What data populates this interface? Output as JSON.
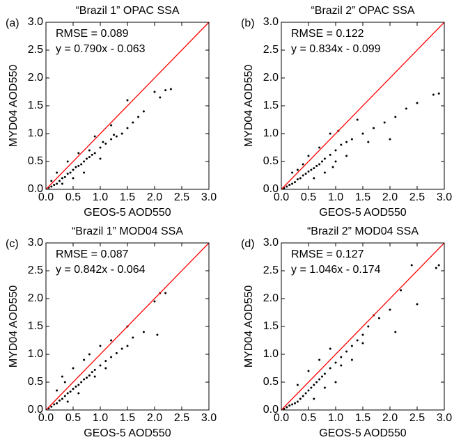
{
  "chart_data": [
    {
      "type": "scatter",
      "title": "“Brazil 1”  OPAC SSA",
      "panel_label": "(a)",
      "xlabel": "GEOS-5 AOD550",
      "ylabel": "MYD04 AOD550",
      "annotations": [
        "RMSE = 0.089",
        "y = 0.790x - 0.063"
      ],
      "color": "#000000",
      "line_color": "#ff0000",
      "xlim": [
        0,
        3
      ],
      "ylim": [
        0,
        3
      ],
      "xticks": [
        {
          "value": 0,
          "label": "0.0"
        },
        0.5,
        {
          "value": 1,
          "label": "1.0"
        },
        1.5,
        {
          "value": 2,
          "label": "2.0"
        },
        2.5,
        {
          "value": 3,
          "label": "3.0"
        }
      ],
      "yticks": [
        {
          "value": 0,
          "label": "0.0"
        },
        0.5,
        {
          "value": 1,
          "label": "1.0"
        },
        1.5,
        {
          "value": 2,
          "label": "2.0"
        },
        2.5,
        {
          "value": 3,
          "label": "3.0"
        }
      ],
      "x": [
        0.05,
        0.1,
        0.15,
        0.2,
        0.25,
        0.3,
        0.35,
        0.4,
        0.45,
        0.5,
        0.55,
        0.6,
        0.65,
        0.7,
        0.75,
        0.8,
        0.85,
        0.9,
        1.0,
        1.1,
        1.2,
        1.3,
        1.4,
        1.5,
        1.6,
        1.7,
        1.8,
        2.0,
        2.1,
        2.2,
        2.3,
        0.3,
        0.5,
        0.2,
        0.4,
        0.7,
        1.0,
        1.5,
        0.9,
        1.2,
        0.1,
        0.6,
        0.8,
        1.05,
        1.25
      ],
      "y": [
        0.03,
        0.05,
        0.08,
        0.1,
        0.15,
        0.2,
        0.22,
        0.28,
        0.3,
        0.35,
        0.4,
        0.42,
        0.45,
        0.5,
        0.55,
        0.58,
        0.62,
        0.65,
        0.75,
        0.82,
        0.9,
        0.95,
        1.0,
        1.1,
        1.2,
        1.3,
        1.4,
        1.75,
        1.65,
        1.78,
        1.8,
        0.1,
        0.2,
        0.3,
        0.5,
        0.3,
        0.55,
        1.6,
        0.95,
        1.15,
        0.15,
        0.65,
        0.7,
        0.85,
        0.98
      ]
    },
    {
      "type": "scatter",
      "title": "“Brazil 2” OPAC SSA",
      "panel_label": "(b)",
      "xlabel": "GEOS-5 AOD550",
      "ylabel": "MYD04 AOD550",
      "annotations": [
        "RMSE = 0.122",
        "y = 0.834x - 0.099"
      ],
      "color": "#000000",
      "line_color": "#ff0000",
      "xlim": [
        0,
        3
      ],
      "ylim": [
        0,
        3
      ],
      "xticks": [
        {
          "value": 0,
          "label": "0.0"
        },
        0.5,
        {
          "value": 1,
          "label": "1.0"
        },
        1.5,
        {
          "value": 2,
          "label": "2.0"
        },
        2.5,
        {
          "value": 3,
          "label": "3.0"
        }
      ],
      "yticks": [
        {
          "value": 0,
          "label": "0.0"
        },
        0.5,
        {
          "value": 1,
          "label": "1.0"
        },
        1.5,
        {
          "value": 2,
          "label": "2.0"
        },
        2.5,
        {
          "value": 3,
          "label": "3.0"
        }
      ],
      "x": [
        0.05,
        0.1,
        0.15,
        0.2,
        0.25,
        0.3,
        0.35,
        0.4,
        0.45,
        0.5,
        0.55,
        0.6,
        0.65,
        0.7,
        0.75,
        0.8,
        0.9,
        1.0,
        1.1,
        1.2,
        1.3,
        1.5,
        1.7,
        1.9,
        2.1,
        2.3,
        2.5,
        2.8,
        2.9,
        0.3,
        0.4,
        0.6,
        0.8,
        1.0,
        1.2,
        0.5,
        0.7,
        0.9,
        1.4,
        0.2,
        1.05,
        1.6,
        2.0,
        0.95
      ],
      "y": [
        0.02,
        0.05,
        0.08,
        0.1,
        0.13,
        0.18,
        0.2,
        0.25,
        0.28,
        0.32,
        0.35,
        0.38,
        0.42,
        0.45,
        0.5,
        0.55,
        0.62,
        0.7,
        0.8,
        0.85,
        0.9,
        1.0,
        1.1,
        1.2,
        1.3,
        1.45,
        1.55,
        1.7,
        1.72,
        0.35,
        0.45,
        0.2,
        0.3,
        0.5,
        0.6,
        0.6,
        0.75,
        1.0,
        1.25,
        0.3,
        1.05,
        0.85,
        0.9,
        0.4
      ]
    },
    {
      "type": "scatter",
      "title": "“Brazil 1” MOD04 SSA",
      "panel_label": "(c)",
      "xlabel": "GEOS-5 AOD550",
      "ylabel": "MYD04 AOD550",
      "annotations": [
        "RMSE = 0.087",
        "y = 0.842x - 0.064"
      ],
      "color": "#000000",
      "line_color": "#ff0000",
      "xlim": [
        0,
        3
      ],
      "ylim": [
        0,
        3
      ],
      "xticks": [
        {
          "value": 0,
          "label": "0.0"
        },
        0.5,
        {
          "value": 1,
          "label": "1.0"
        },
        1.5,
        {
          "value": 2,
          "label": "2.0"
        },
        2.5,
        {
          "value": 3,
          "label": "3.0"
        }
      ],
      "yticks": [
        {
          "value": 0,
          "label": "0.0"
        },
        0.5,
        {
          "value": 1,
          "label": "1.0"
        },
        1.5,
        {
          "value": 2,
          "label": "2.0"
        },
        2.5,
        {
          "value": 3,
          "label": "3.0"
        }
      ],
      "x": [
        0.05,
        0.1,
        0.15,
        0.2,
        0.25,
        0.3,
        0.35,
        0.4,
        0.45,
        0.5,
        0.55,
        0.6,
        0.65,
        0.7,
        0.75,
        0.8,
        0.85,
        0.9,
        1.0,
        1.1,
        1.2,
        1.3,
        1.4,
        1.5,
        1.6,
        1.8,
        2.0,
        2.1,
        2.2,
        0.3,
        0.5,
        0.4,
        0.6,
        0.8,
        1.0,
        1.2,
        0.7,
        1.5,
        0.9,
        0.2,
        0.35,
        1.1,
        2.05
      ],
      "y": [
        0.03,
        0.06,
        0.1,
        0.12,
        0.17,
        0.2,
        0.25,
        0.3,
        0.33,
        0.38,
        0.42,
        0.45,
        0.5,
        0.55,
        0.58,
        0.62,
        0.68,
        0.72,
        0.8,
        0.88,
        0.95,
        1.02,
        1.1,
        1.15,
        1.3,
        1.4,
        1.95,
        2.1,
        2.1,
        0.6,
        0.75,
        0.15,
        0.3,
        1.0,
        1.15,
        1.25,
        0.9,
        1.5,
        0.6,
        0.35,
        0.5,
        0.75,
        1.35
      ]
    },
    {
      "type": "scatter",
      "title": "“Brazil 2” MOD04 SSA",
      "panel_label": "(d)",
      "xlabel": "GEOS-5 AOD550",
      "ylabel": "MYD04 AOD550",
      "annotations": [
        "RMSE = 0.127",
        "y = 1.046x - 0.174"
      ],
      "color": "#000000",
      "line_color": "#ff0000",
      "xlim": [
        0,
        3
      ],
      "ylim": [
        0,
        3
      ],
      "xticks": [
        {
          "value": 0,
          "label": "0.0"
        },
        0.5,
        {
          "value": 1,
          "label": "1.0"
        },
        1.5,
        {
          "value": 2,
          "label": "2.0"
        },
        2.5,
        {
          "value": 3,
          "label": "3.0"
        }
      ],
      "yticks": [
        {
          "value": 0,
          "label": "0.0"
        },
        0.5,
        {
          "value": 1,
          "label": "1.0"
        },
        1.5,
        {
          "value": 2,
          "label": "2.0"
        },
        2.5,
        {
          "value": 3,
          "label": "3.0"
        }
      ],
      "x": [
        0.05,
        0.1,
        0.15,
        0.2,
        0.25,
        0.3,
        0.35,
        0.4,
        0.45,
        0.5,
        0.55,
        0.6,
        0.65,
        0.7,
        0.75,
        0.8,
        0.9,
        1.0,
        1.1,
        1.2,
        1.3,
        1.4,
        1.5,
        1.6,
        1.8,
        2.0,
        2.2,
        2.4,
        2.85,
        2.9,
        0.5,
        0.7,
        0.9,
        1.1,
        1.3,
        0.6,
        0.8,
        1.0,
        1.5,
        2.1,
        0.3,
        1.7,
        2.5
      ],
      "y": [
        0.02,
        0.05,
        0.08,
        0.1,
        0.12,
        0.15,
        0.2,
        0.25,
        0.3,
        0.35,
        0.4,
        0.45,
        0.5,
        0.55,
        0.6,
        0.65,
        0.75,
        0.85,
        0.95,
        1.05,
        1.15,
        1.25,
        1.35,
        1.5,
        1.65,
        1.8,
        2.15,
        2.6,
        2.55,
        2.6,
        0.7,
        0.9,
        1.1,
        0.8,
        0.9,
        0.2,
        0.4,
        0.5,
        1.2,
        1.4,
        0.45,
        1.7,
        1.9
      ]
    }
  ]
}
